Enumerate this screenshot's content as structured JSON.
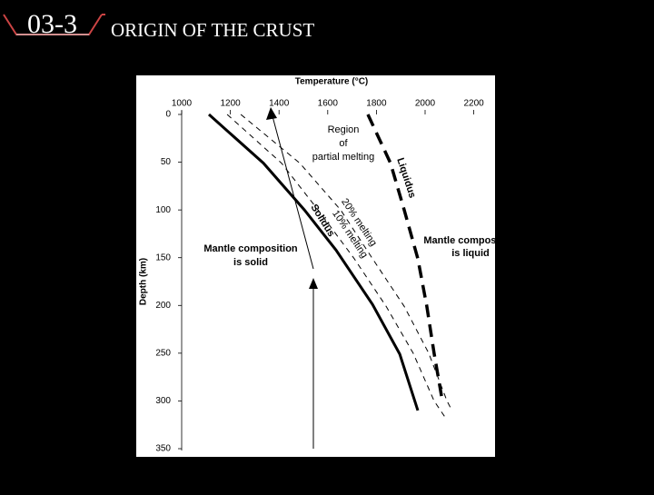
{
  "header": {
    "number": "03-3",
    "title": "ORIGIN OF THE CRUST"
  },
  "chart_data": {
    "type": "line",
    "xlabel": "Temperature (°C)",
    "ylabel": "Depth (km)",
    "xlim": [
      1000,
      2200
    ],
    "xticks": [
      1000,
      1200,
      1400,
      1600,
      1800,
      2000,
      2200
    ],
    "ylim": [
      0,
      350
    ],
    "yticks": [
      0,
      50,
      100,
      150,
      200,
      250,
      300,
      350
    ],
    "y_inverted": true,
    "x_axis_top": true,
    "series": [
      {
        "name": "Solidus",
        "color": "#000000",
        "line_style": "solid",
        "x": [
          1112,
          1336,
          1504,
          1634,
          1784,
          1896,
          1970
        ],
        "values": [
          0,
          51,
          100,
          142,
          199,
          251,
          310
        ]
      },
      {
        "name": "10% melting",
        "color": "#000000",
        "line_style": "dashed",
        "x": [
          1187,
          1410,
          1560,
          1709,
          1840,
          1951,
          2037,
          2090
        ],
        "values": [
          0,
          51,
          100,
          151,
          201,
          250,
          300,
          320
        ]
      },
      {
        "name": "20% melting",
        "color": "#000000",
        "line_style": "dashed",
        "x": [
          1243,
          1485,
          1653,
          1784,
          1914,
          2015,
          2090,
          2110
        ],
        "values": [
          0,
          51,
          100,
          151,
          201,
          250,
          300,
          310
        ]
      },
      {
        "name": "Liquidus",
        "color": "#000000",
        "line_style": "bold-dashed",
        "x": [
          1765,
          1858,
          1914,
          1970,
          2007,
          2037,
          2071
        ],
        "values": [
          0,
          51,
          100,
          151,
          201,
          250,
          300
        ]
      }
    ],
    "annotations": [
      [
        "Region",
        "of",
        "partial melting"
      ],
      [
        "Mantle composition",
        "is solid"
      ],
      [
        "Mantle composition",
        "is liquid"
      ]
    ]
  }
}
